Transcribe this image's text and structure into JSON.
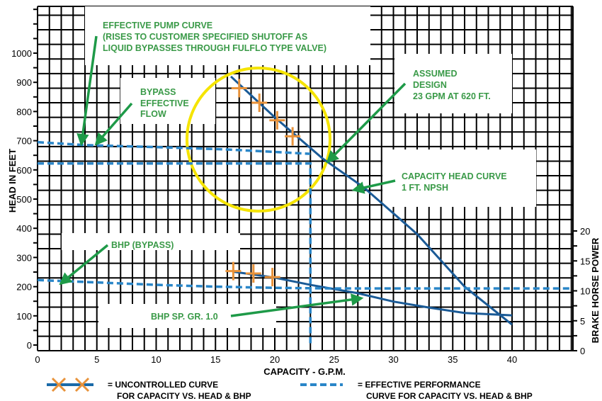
{
  "chart_data": {
    "type": "line",
    "xlabel": "CAPACITY - G.P.M.",
    "ylabel": "HEAD IN FEET",
    "y2label": "BRAKE HORSE POWER",
    "xlim": [
      0,
      45
    ],
    "ylim": [
      0,
      1150
    ],
    "y2lim": [
      0,
      20
    ],
    "grid": true,
    "x_ticks": [
      "0",
      "5",
      "10",
      "15",
      "20",
      "25",
      "30",
      "35",
      "40"
    ],
    "y_ticks": [
      "0",
      "100",
      "200",
      "300",
      "400",
      "500",
      "600",
      "700",
      "800",
      "900",
      "1000"
    ],
    "y2_ticks": [
      "0",
      "5",
      "10",
      "15",
      "20"
    ],
    "colors": {
      "uncontrolled": "#1a5a96",
      "effective": "#2a86c8",
      "markers": "#e8923a",
      "circle": "#f5e400",
      "annotation": "#3a9a48"
    },
    "series": [
      {
        "key": "uncontrolled_head",
        "axis": "head",
        "style": "solid",
        "x": [
          16.3,
          20,
          24,
          27.5,
          32,
          36,
          40
        ],
        "y": [
          920,
          780,
          640,
          540,
          380,
          200,
          70
        ]
      },
      {
        "key": "uncontrolled_head_markers",
        "axis": "head",
        "style": "cross",
        "x": [
          17,
          18.7,
          20.2,
          21.5
        ],
        "y": [
          880,
          830,
          770,
          715
        ]
      },
      {
        "key": "effective_head",
        "axis": "head",
        "style": "dashed",
        "x": [
          0,
          4,
          10,
          16,
          23
        ],
        "y": [
          695,
          685,
          678,
          670,
          655
        ]
      },
      {
        "key": "design_head_line",
        "axis": "head",
        "style": "dashed",
        "x": [
          0,
          23,
          23
        ],
        "y": [
          622,
          622,
          0
        ]
      },
      {
        "key": "uncontrolled_bhp",
        "axis": "bhp",
        "style": "solid",
        "x": [
          16.5,
          20,
          23,
          27,
          30,
          33,
          36,
          40
        ],
        "y": [
          13.2,
          12.2,
          11,
          9.6,
          8.2,
          7.2,
          6.3,
          5.9
        ]
      },
      {
        "key": "uncontrolled_bhp_markers",
        "axis": "bhp",
        "style": "cross",
        "x": [
          16.5,
          18.2,
          19.8
        ],
        "y": [
          13.3,
          12.9,
          12.3
        ]
      },
      {
        "key": "effective_bhp",
        "axis": "bhp",
        "style": "dashed",
        "x": [
          0,
          5,
          10,
          15,
          20,
          25,
          45
        ],
        "y": [
          11.8,
          11.4,
          11.0,
          10.7,
          10.5,
          10.4,
          10.4
        ]
      }
    ],
    "annotations": {
      "pump_curve": [
        "EFFECTIVE PUMP CURVE",
        "(RISES TO CUSTOMER SPECIFIED SHUTOFF AS",
        "LIQUID BYPASSES THROUGH FULFLO TYPE VALVE)"
      ],
      "bypass": [
        "BYPASS",
        "EFFECTIVE",
        "FLOW"
      ],
      "design": [
        "ASSUMED",
        "DESIGN",
        "23 GPM AT 620 FT."
      ],
      "capacity_head": [
        "CAPACITY HEAD CURVE",
        "1 FT. NPSH"
      ],
      "bhp_bypass": "BHP (BYPASS)",
      "bhp_spgr": "BHP SP. GR. 1.0"
    },
    "legend": {
      "uncontrolled": [
        "= UNCONTROLLED CURVE",
        "FOR CAPACITY VS. HEAD & BHP"
      ],
      "effective": [
        "= EFFECTIVE PERFORMANCE",
        "CURVE FOR CAPACITY VS. HEAD & BHP"
      ]
    }
  }
}
